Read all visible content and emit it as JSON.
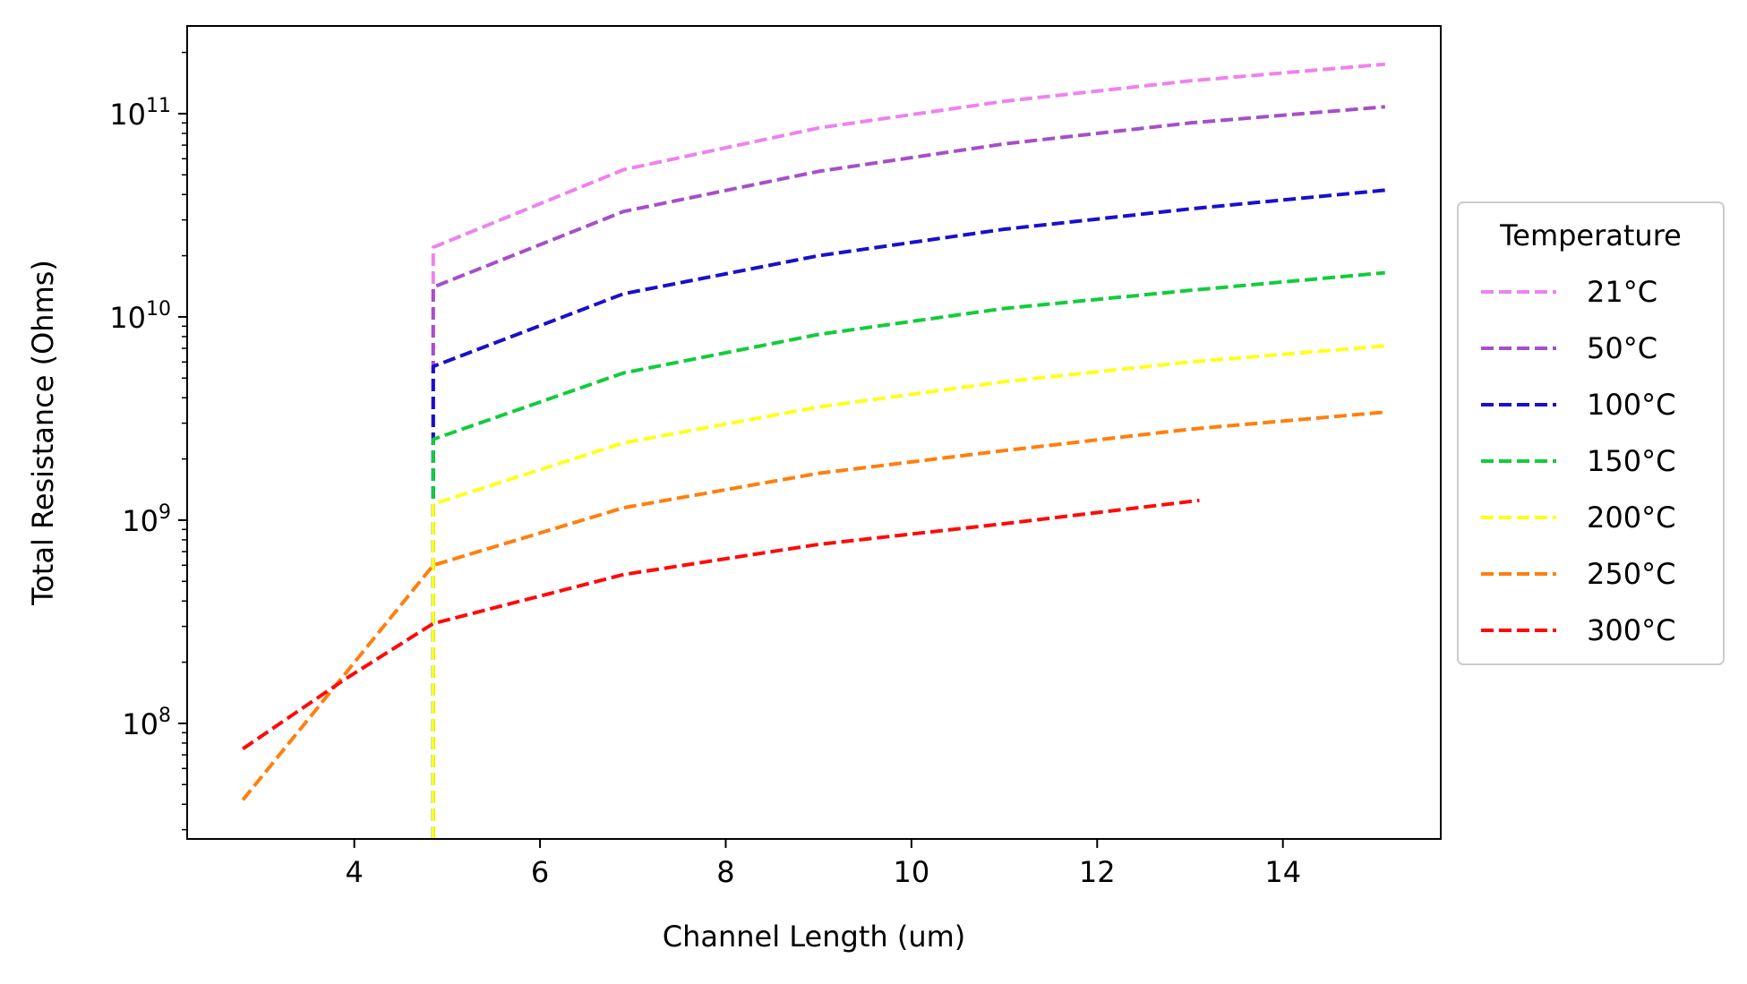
{
  "chart_data": {
    "type": "line",
    "title": "",
    "xlabel": "Channel Length (um)",
    "ylabel": "Total Resistance (Ohms)",
    "xscale": "linear",
    "yscale": "log",
    "xlim": [
      2.2,
      15.7
    ],
    "ylim": [
      27000000.0,
      270000000000.0
    ],
    "xticks": [
      4,
      6,
      8,
      10,
      12,
      14
    ],
    "xtick_labels": [
      "4",
      "6",
      "8",
      "10",
      "12",
      "14"
    ],
    "ytick_exponents": [
      8,
      9,
      10,
      11
    ],
    "ytick_base": "10",
    "grid": false,
    "line_style": "dashed",
    "legend": {
      "title": "Temperature",
      "placement": "outside-right"
    },
    "series": [
      {
        "name": "21°C",
        "color": "#ee82ee",
        "points": [
          [
            4.85,
            27000000.0
          ],
          [
            4.85,
            22000000000.0
          ],
          [
            6.9,
            53000000000.0
          ],
          [
            9.0,
            85000000000.0
          ],
          [
            11.0,
            115000000000.0
          ],
          [
            13.0,
            145000000000.0
          ],
          [
            15.1,
            175000000000.0
          ]
        ]
      },
      {
        "name": "50°C",
        "color": "#a64fc9",
        "points": [
          [
            4.85,
            27000000.0
          ],
          [
            4.85,
            14000000000.0
          ],
          [
            6.9,
            33000000000.0
          ],
          [
            9.0,
            52000000000.0
          ],
          [
            11.0,
            71000000000.0
          ],
          [
            13.0,
            90000000000.0
          ],
          [
            15.1,
            108000000000.0
          ]
        ]
      },
      {
        "name": "100°C",
        "color": "#1a0fcc",
        "points": [
          [
            4.85,
            27000000.0
          ],
          [
            4.85,
            5700000000.0
          ],
          [
            6.9,
            13000000000.0
          ],
          [
            9.0,
            20000000000.0
          ],
          [
            11.0,
            27000000000.0
          ],
          [
            13.0,
            34000000000.0
          ],
          [
            15.1,
            42000000000.0
          ]
        ]
      },
      {
        "name": "150°C",
        "color": "#12cc3c",
        "points": [
          [
            4.85,
            27000000.0
          ],
          [
            4.85,
            2500000000.0
          ],
          [
            6.9,
            5300000000.0
          ],
          [
            9.0,
            8200000000.0
          ],
          [
            11.0,
            11000000000.0
          ],
          [
            13.0,
            13500000000.0
          ],
          [
            15.1,
            16500000000.0
          ]
        ]
      },
      {
        "name": "200°C",
        "color": "#ffff1a",
        "points": [
          [
            4.85,
            27000000.0
          ],
          [
            4.85,
            1200000000.0
          ],
          [
            6.9,
            2400000000.0
          ],
          [
            9.0,
            3600000000.0
          ],
          [
            11.0,
            4800000000.0
          ],
          [
            13.0,
            6000000000.0
          ],
          [
            15.1,
            7200000000.0
          ]
        ]
      },
      {
        "name": "250°C",
        "color": "#ff7f0e",
        "points": [
          [
            2.8,
            42000000.0
          ],
          [
            4.85,
            600000000.0
          ],
          [
            6.9,
            1150000000.0
          ],
          [
            9.0,
            1700000000.0
          ],
          [
            11.0,
            2200000000.0
          ],
          [
            13.0,
            2800000000.0
          ],
          [
            15.1,
            3400000000.0
          ]
        ]
      },
      {
        "name": "300°C",
        "color": "#ff0a0a",
        "points": [
          [
            2.8,
            75000000.0
          ],
          [
            3.9,
            165000000.0
          ],
          [
            4.85,
            310000000.0
          ],
          [
            6.9,
            540000000.0
          ],
          [
            9.0,
            760000000.0
          ],
          [
            11.0,
            960000000.0
          ],
          [
            13.1,
            1250000000.0
          ]
        ]
      }
    ]
  }
}
